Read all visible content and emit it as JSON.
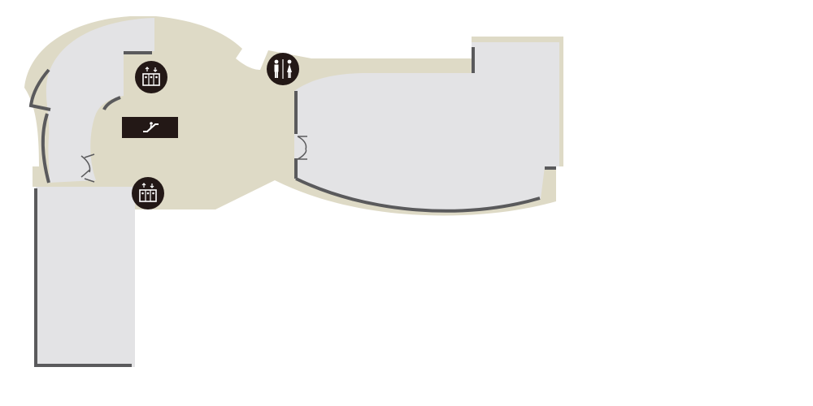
{
  "map": {
    "colors": {
      "background": "#ffffff",
      "corridor": "#dedac6",
      "room": "#e3e3e5",
      "wall": "#5a5a5c",
      "icon_bg": "#231816",
      "icon_fg": "#ffffff"
    },
    "icons": [
      {
        "name": "elevator-icon",
        "kind": "elevator"
      },
      {
        "name": "escalator-icon",
        "kind": "escalator"
      },
      {
        "name": "elevator-icon",
        "kind": "elevator"
      },
      {
        "name": "restroom-icon",
        "kind": "restroom"
      }
    ],
    "doors": [
      {
        "name": "door-icon",
        "kind": "double-door"
      },
      {
        "name": "door-icon",
        "kind": "double-door"
      }
    ]
  }
}
